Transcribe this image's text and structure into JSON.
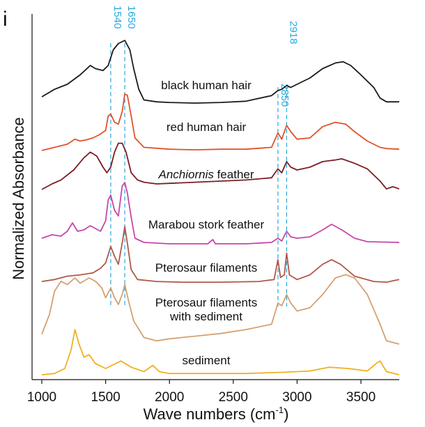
{
  "chart_data": {
    "type": "line",
    "panel_label": "i",
    "xlabel": "Wave numbers (cm",
    "xlabel_sup": "-1",
    "xlabel_close": ")",
    "ylabel": "Normalized Absorbance",
    "xlim": [
      1000,
      3800
    ],
    "x_ticks": [
      1000,
      1500,
      2000,
      2500,
      3000,
      3500
    ],
    "tick_labels": [
      "1000",
      "1500",
      "2000",
      "2500",
      "3000",
      "3500"
    ],
    "reference_lines": [
      {
        "x": 1540,
        "label": "1540"
      },
      {
        "x": 1650,
        "label": "1650"
      },
      {
        "x": 2850,
        "label": "2850"
      },
      {
        "x": 2918,
        "label": "2918"
      }
    ],
    "series_label_parts": [
      {
        "italic": "",
        "text": "black human hair"
      },
      {
        "italic": "",
        "text": "red human hair"
      },
      {
        "italic": "Anchiornis",
        "text": " feather"
      },
      {
        "italic": "",
        "text": "Marabou stork feather"
      },
      {
        "italic": "",
        "text": "Pterosaur filaments"
      },
      {
        "italic": "",
        "text": "Pterosaur filaments",
        "text2": "with sediment"
      },
      {
        "italic": "",
        "text": "sediment"
      }
    ],
    "series": [
      {
        "name": "black human hair",
        "color": "#1a1a1a",
        "baseline": 148,
        "scale": 90,
        "points": [
          [
            1000,
            0.1
          ],
          [
            1100,
            0.22
          ],
          [
            1200,
            0.3
          ],
          [
            1300,
            0.45
          ],
          [
            1380,
            0.6
          ],
          [
            1420,
            0.55
          ],
          [
            1480,
            0.52
          ],
          [
            1520,
            0.6
          ],
          [
            1560,
            0.85
          ],
          [
            1600,
            0.95
          ],
          [
            1650,
            1.0
          ],
          [
            1690,
            0.85
          ],
          [
            1720,
            0.55
          ],
          [
            1760,
            0.22
          ],
          [
            1800,
            0.05
          ],
          [
            1900,
            0.02
          ],
          [
            2000,
            0.01
          ],
          [
            2200,
            0.0
          ],
          [
            2400,
            0.01
          ],
          [
            2600,
            0.03
          ],
          [
            2800,
            0.12
          ],
          [
            2850,
            0.2
          ],
          [
            2880,
            0.22
          ],
          [
            2918,
            0.28
          ],
          [
            2950,
            0.25
          ],
          [
            3000,
            0.3
          ],
          [
            3100,
            0.4
          ],
          [
            3200,
            0.55
          ],
          [
            3300,
            0.64
          ],
          [
            3360,
            0.66
          ],
          [
            3420,
            0.6
          ],
          [
            3500,
            0.45
          ],
          [
            3600,
            0.25
          ],
          [
            3650,
            0.08
          ],
          [
            3700,
            0.02
          ],
          [
            3800,
            0.02
          ]
        ]
      },
      {
        "name": "red human hair",
        "color": "#e0522a",
        "baseline": 216,
        "scale": 90,
        "points": [
          [
            1000,
            0.0
          ],
          [
            1100,
            0.05
          ],
          [
            1200,
            0.1
          ],
          [
            1260,
            0.18
          ],
          [
            1300,
            0.15
          ],
          [
            1350,
            0.17
          ],
          [
            1400,
            0.2
          ],
          [
            1450,
            0.25
          ],
          [
            1500,
            0.32
          ],
          [
            1520,
            0.55
          ],
          [
            1540,
            0.58
          ],
          [
            1570,
            0.45
          ],
          [
            1600,
            0.42
          ],
          [
            1630,
            0.62
          ],
          [
            1650,
            0.9
          ],
          [
            1670,
            0.88
          ],
          [
            1700,
            0.55
          ],
          [
            1730,
            0.2
          ],
          [
            1800,
            0.05
          ],
          [
            2000,
            0.02
          ],
          [
            2200,
            0.01
          ],
          [
            2400,
            0.02
          ],
          [
            2600,
            0.02
          ],
          [
            2800,
            0.05
          ],
          [
            2850,
            0.28
          ],
          [
            2880,
            0.18
          ],
          [
            2918,
            0.4
          ],
          [
            2950,
            0.3
          ],
          [
            3000,
            0.18
          ],
          [
            3100,
            0.2
          ],
          [
            3200,
            0.38
          ],
          [
            3300,
            0.45
          ],
          [
            3380,
            0.42
          ],
          [
            3450,
            0.3
          ],
          [
            3550,
            0.15
          ],
          [
            3650,
            0.05
          ],
          [
            3700,
            0.03
          ],
          [
            3800,
            0.02
          ]
        ]
      },
      {
        "name": "Anchiornis feather",
        "color": "#7a1e24",
        "baseline": 276,
        "scale": 80,
        "points": [
          [
            1000,
            0.05
          ],
          [
            1080,
            0.15
          ],
          [
            1150,
            0.22
          ],
          [
            1250,
            0.4
          ],
          [
            1330,
            0.62
          ],
          [
            1380,
            0.72
          ],
          [
            1430,
            0.65
          ],
          [
            1480,
            0.45
          ],
          [
            1510,
            0.35
          ],
          [
            1540,
            0.45
          ],
          [
            1570,
            0.72
          ],
          [
            1600,
            0.88
          ],
          [
            1630,
            0.88
          ],
          [
            1660,
            0.72
          ],
          [
            1700,
            0.35
          ],
          [
            1750,
            0.22
          ],
          [
            1800,
            0.18
          ],
          [
            1900,
            0.15
          ],
          [
            2000,
            0.16
          ],
          [
            2200,
            0.18
          ],
          [
            2400,
            0.2
          ],
          [
            2600,
            0.22
          ],
          [
            2800,
            0.26
          ],
          [
            2850,
            0.42
          ],
          [
            2880,
            0.35
          ],
          [
            2918,
            0.55
          ],
          [
            2950,
            0.45
          ],
          [
            3000,
            0.4
          ],
          [
            3100,
            0.45
          ],
          [
            3200,
            0.55
          ],
          [
            3300,
            0.58
          ],
          [
            3350,
            0.6
          ],
          [
            3450,
            0.52
          ],
          [
            3550,
            0.42
          ],
          [
            3650,
            0.2
          ],
          [
            3700,
            0.06
          ],
          [
            3750,
            0.1
          ],
          [
            3800,
            0.06
          ]
        ]
      },
      {
        "name": "Marabou stork feather",
        "color": "#c846a8",
        "baseline": 352,
        "scale": 100,
        "points": [
          [
            1000,
            0.1
          ],
          [
            1080,
            0.15
          ],
          [
            1150,
            0.13
          ],
          [
            1200,
            0.2
          ],
          [
            1240,
            0.32
          ],
          [
            1280,
            0.2
          ],
          [
            1330,
            0.22
          ],
          [
            1380,
            0.28
          ],
          [
            1420,
            0.24
          ],
          [
            1460,
            0.2
          ],
          [
            1500,
            0.35
          ],
          [
            1520,
            0.65
          ],
          [
            1540,
            0.72
          ],
          [
            1570,
            0.5
          ],
          [
            1600,
            0.42
          ],
          [
            1630,
            0.85
          ],
          [
            1650,
            0.9
          ],
          [
            1670,
            0.75
          ],
          [
            1700,
            0.4
          ],
          [
            1730,
            0.1
          ],
          [
            1800,
            0.04
          ],
          [
            2000,
            0.02
          ],
          [
            2300,
            0.02
          ],
          [
            2340,
            0.08
          ],
          [
            2360,
            0.02
          ],
          [
            2600,
            0.02
          ],
          [
            2800,
            0.04
          ],
          [
            2850,
            0.1
          ],
          [
            2880,
            0.06
          ],
          [
            2918,
            0.2
          ],
          [
            2950,
            0.12
          ],
          [
            3000,
            0.1
          ],
          [
            3100,
            0.12
          ],
          [
            3200,
            0.22
          ],
          [
            3270,
            0.3
          ],
          [
            3350,
            0.22
          ],
          [
            3450,
            0.1
          ],
          [
            3550,
            0.05
          ],
          [
            3800,
            0.04
          ]
        ]
      },
      {
        "name": "Pterosaur filaments",
        "color": "#b0584a",
        "baseline": 406,
        "scale": 95,
        "points": [
          [
            1000,
            0.02
          ],
          [
            1100,
            0.05
          ],
          [
            1200,
            0.1
          ],
          [
            1300,
            0.12
          ],
          [
            1400,
            0.15
          ],
          [
            1460,
            0.22
          ],
          [
            1500,
            0.3
          ],
          [
            1540,
            0.55
          ],
          [
            1570,
            0.4
          ],
          [
            1600,
            0.28
          ],
          [
            1630,
            0.6
          ],
          [
            1650,
            0.85
          ],
          [
            1670,
            0.6
          ],
          [
            1700,
            0.2
          ],
          [
            1750,
            0.05
          ],
          [
            1900,
            0.02
          ],
          [
            2100,
            0.01
          ],
          [
            2400,
            0.01
          ],
          [
            2700,
            0.02
          ],
          [
            2820,
            0.05
          ],
          [
            2850,
            0.35
          ],
          [
            2870,
            0.08
          ],
          [
            2900,
            0.12
          ],
          [
            2918,
            0.45
          ],
          [
            2940,
            0.12
          ],
          [
            3000,
            0.05
          ],
          [
            3100,
            0.12
          ],
          [
            3200,
            0.28
          ],
          [
            3270,
            0.35
          ],
          [
            3340,
            0.28
          ],
          [
            3450,
            0.1
          ],
          [
            3600,
            0.02
          ],
          [
            3700,
            0.01
          ],
          [
            3800,
            0.05
          ]
        ]
      },
      {
        "name": "Pterosaur filaments with sediment",
        "color": "#d4a070",
        "baseline": 494,
        "scale": 95,
        "points": [
          [
            1000,
            0.15
          ],
          [
            1060,
            0.45
          ],
          [
            1100,
            0.8
          ],
          [
            1150,
            0.95
          ],
          [
            1200,
            0.9
          ],
          [
            1260,
            1.0
          ],
          [
            1300,
            0.92
          ],
          [
            1370,
            1.0
          ],
          [
            1420,
            0.95
          ],
          [
            1470,
            0.85
          ],
          [
            1500,
            0.7
          ],
          [
            1540,
            0.85
          ],
          [
            1570,
            0.7
          ],
          [
            1600,
            0.6
          ],
          [
            1630,
            0.75
          ],
          [
            1650,
            0.9
          ],
          [
            1680,
            0.65
          ],
          [
            1720,
            0.35
          ],
          [
            1800,
            0.1
          ],
          [
            1900,
            0.05
          ],
          [
            2000,
            0.08
          ],
          [
            2200,
            0.12
          ],
          [
            2400,
            0.16
          ],
          [
            2600,
            0.22
          ],
          [
            2800,
            0.3
          ],
          [
            2850,
            0.62
          ],
          [
            2880,
            0.58
          ],
          [
            2918,
            0.75
          ],
          [
            2950,
            0.62
          ],
          [
            3000,
            0.5
          ],
          [
            3100,
            0.55
          ],
          [
            3200,
            0.75
          ],
          [
            3300,
            1.0
          ],
          [
            3380,
            1.05
          ],
          [
            3450,
            1.0
          ],
          [
            3550,
            0.75
          ],
          [
            3650,
            0.3
          ],
          [
            3700,
            0.05
          ],
          [
            3800,
            0.0
          ]
        ]
      },
      {
        "name": "sediment",
        "color": "#f0b020",
        "baseline": 538,
        "scale": 90,
        "points": [
          [
            1000,
            0.0
          ],
          [
            1100,
            0.02
          ],
          [
            1180,
            0.1
          ],
          [
            1230,
            0.4
          ],
          [
            1260,
            0.72
          ],
          [
            1290,
            0.5
          ],
          [
            1330,
            0.28
          ],
          [
            1370,
            0.32
          ],
          [
            1420,
            0.18
          ],
          [
            1500,
            0.1
          ],
          [
            1580,
            0.18
          ],
          [
            1620,
            0.22
          ],
          [
            1700,
            0.12
          ],
          [
            1800,
            0.05
          ],
          [
            1870,
            0.15
          ],
          [
            1920,
            0.05
          ],
          [
            2000,
            0.02
          ],
          [
            2300,
            0.02
          ],
          [
            2600,
            0.02
          ],
          [
            2900,
            0.04
          ],
          [
            3100,
            0.06
          ],
          [
            3250,
            0.12
          ],
          [
            3400,
            0.1
          ],
          [
            3550,
            0.06
          ],
          [
            3620,
            0.18
          ],
          [
            3650,
            0.22
          ],
          [
            3700,
            0.05
          ],
          [
            3800,
            0.0
          ]
        ]
      }
    ]
  }
}
